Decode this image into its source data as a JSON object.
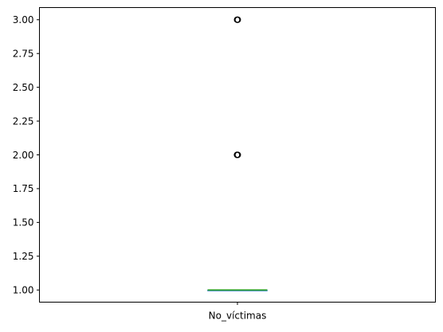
{
  "chart_data": {
    "type": "box",
    "title": "",
    "xlabel": "",
    "ylabel": "",
    "categories": [
      "No_víctimas"
    ],
    "ylim": [
      0.91,
      3.09
    ],
    "yticks": [
      "1.00",
      "1.25",
      "1.50",
      "1.75",
      "2.00",
      "2.25",
      "2.50",
      "2.75",
      "3.00"
    ],
    "grid": false,
    "boxes": [
      {
        "label": "No_víctimas",
        "whisker_low": 1.0,
        "q1": 1.0,
        "median": 1.0,
        "q3": 1.0,
        "whisker_high": 1.0,
        "outliers": [
          2.0,
          2.0,
          2.0,
          3.0,
          3.0
        ]
      }
    ],
    "colors": {
      "median": "#2ca02c",
      "box": "#1f77b4",
      "outlier_edge": "#000000"
    }
  }
}
